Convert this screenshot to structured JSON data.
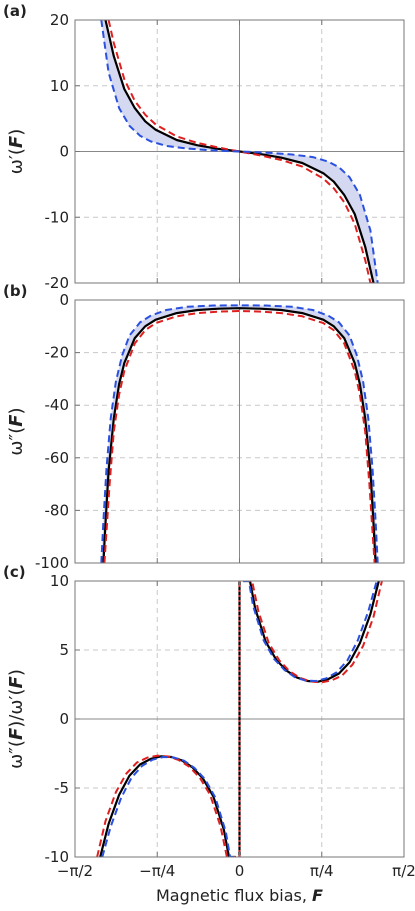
{
  "colors": {
    "black": "#000000",
    "red": "#e02020",
    "blue": "#2a50e0",
    "band": "#d4d8f0",
    "grid": "#c8c8c8",
    "frame": "#777777",
    "zero": "#888888"
  },
  "xaxis": {
    "label": "Magnetic flux bias, ",
    "label_symbol": "F",
    "range": [
      -1.5708,
      1.5708
    ],
    "tick_values": [
      -1.5708,
      -0.7854,
      0,
      0.7854,
      1.5708
    ],
    "tick_labels": [
      "−π/2",
      "−π/4",
      "0",
      "π/4",
      "π/2"
    ]
  },
  "chart_data": [
    {
      "type": "line",
      "panel_label": "(a)",
      "ylabel": "ω′(F)",
      "ylim": [
        -20,
        20
      ],
      "yticks": [
        20,
        10,
        0,
        -10,
        -20
      ],
      "ytick_labels": [
        "20",
        "10",
        "0",
        "-10",
        "-20"
      ],
      "xlim": [
        -1.5708,
        1.5708
      ],
      "grid": true,
      "series": [
        {
          "style": "solid",
          "color": "black",
          "x": [
            -1.28,
            -1.2,
            -1.1,
            -1.0,
            -0.9,
            -0.8,
            -0.6,
            -0.4,
            -0.2,
            0,
            0.2,
            0.4,
            0.6,
            0.8,
            0.9,
            1.0,
            1.1,
            1.2,
            1.28
          ],
          "y": [
            20,
            14.5,
            9.5,
            6.6,
            4.6,
            3.3,
            1.75,
            0.95,
            0.4,
            0,
            -0.4,
            -0.95,
            -1.75,
            -3.3,
            -4.6,
            -6.6,
            -9.5,
            -14.5,
            -20
          ]
        },
        {
          "style": "dashed",
          "color": "red",
          "x": [
            -1.25,
            -1.2,
            -1.1,
            -1.0,
            -0.9,
            -0.8,
            -0.6,
            -0.4,
            -0.2,
            0,
            0.2,
            0.4,
            0.6,
            0.8,
            0.9,
            1.0,
            1.1,
            1.2,
            1.25,
            1.3
          ],
          "y": [
            20,
            16.5,
            11,
            7.7,
            5.6,
            4.1,
            2.3,
            1.3,
            0.6,
            0,
            -0.6,
            -1.3,
            -2.3,
            -4.1,
            -5.6,
            -7.7,
            -11,
            -16.5,
            -20,
            -20
          ]
        },
        {
          "style": "dashed",
          "color": "blue",
          "x": [
            -1.32,
            -1.25,
            -1.15,
            -1.05,
            -0.95,
            -0.85,
            -0.7,
            -0.5,
            -0.3,
            -0.1,
            0,
            0.1,
            0.3,
            0.5,
            0.7,
            0.85,
            0.95,
            1.05,
            1.15,
            1.25,
            1.32
          ],
          "y": [
            20,
            12,
            6.6,
            3.9,
            2.4,
            1.55,
            0.85,
            0.45,
            0.22,
            0.06,
            0,
            -0.06,
            -0.22,
            -0.45,
            -0.85,
            -1.55,
            -2.4,
            -3.9,
            -6.6,
            -12,
            -20
          ]
        }
      ]
    },
    {
      "type": "line",
      "panel_label": "(b)",
      "ylabel": "ω″(F)",
      "ylim": [
        -100,
        0
      ],
      "yticks": [
        0,
        -20,
        -40,
        -60,
        -80,
        -100
      ],
      "ytick_labels": [
        "0",
        "-20",
        "-40",
        "-60",
        "-80",
        "-100"
      ],
      "xlim": [
        -1.5708,
        1.5708
      ],
      "grid": true,
      "series": [
        {
          "style": "solid",
          "color": "black",
          "x": [
            -1.3,
            -1.28,
            -1.25,
            -1.2,
            -1.15,
            -1.1,
            -1.0,
            -0.9,
            -0.8,
            -0.6,
            -0.4,
            -0.2,
            0,
            0.2,
            0.4,
            0.6,
            0.8,
            0.9,
            1.0,
            1.1,
            1.15,
            1.2,
            1.25,
            1.28,
            1.3
          ],
          "y": [
            -100,
            -85,
            -65,
            -45,
            -32,
            -24,
            -14.5,
            -10,
            -7.5,
            -5,
            -3.8,
            -3.3,
            -3.1,
            -3.3,
            -3.8,
            -5,
            -7.5,
            -10,
            -14.5,
            -24,
            -32,
            -45,
            -65,
            -85,
            -100
          ]
        },
        {
          "style": "dashed",
          "color": "red",
          "x": [
            -1.29,
            -1.27,
            -1.24,
            -1.2,
            -1.15,
            -1.1,
            -1.0,
            -0.9,
            -0.8,
            -0.6,
            -0.4,
            -0.2,
            0,
            0.2,
            0.4,
            0.6,
            0.8,
            0.9,
            1.0,
            1.1,
            1.15,
            1.2,
            1.24,
            1.27,
            1.29
          ],
          "y": [
            -100,
            -88,
            -70,
            -50,
            -36,
            -27,
            -16.5,
            -11.5,
            -8.8,
            -6.2,
            -5,
            -4.4,
            -4.2,
            -4.4,
            -5,
            -6.2,
            -8.8,
            -11.5,
            -16.5,
            -27,
            -36,
            -50,
            -70,
            -88,
            -100
          ]
        },
        {
          "style": "dashed",
          "color": "blue",
          "x": [
            -1.32,
            -1.3,
            -1.27,
            -1.23,
            -1.18,
            -1.12,
            -1.05,
            -0.95,
            -0.85,
            -0.7,
            -0.5,
            -0.25,
            0,
            0.25,
            0.5,
            0.7,
            0.85,
            0.95,
            1.05,
            1.12,
            1.18,
            1.23,
            1.27,
            1.3,
            1.32
          ],
          "y": [
            -100,
            -84,
            -64,
            -45,
            -31,
            -21,
            -13.5,
            -8.5,
            -6,
            -3.8,
            -2.6,
            -2.1,
            -2,
            -2.1,
            -2.6,
            -3.8,
            -6,
            -8.5,
            -13.5,
            -21,
            -31,
            -45,
            -64,
            -84,
            -100
          ]
        }
      ]
    },
    {
      "type": "line",
      "panel_label": "(c)",
      "ylabel": "ω″(F)/ω′(F)",
      "ylim": [
        -10,
        10
      ],
      "yticks": [
        10,
        5,
        0,
        -5,
        -10
      ],
      "ytick_labels": [
        "10",
        "5",
        "0",
        "-5",
        "-10"
      ],
      "xlim": [
        -1.5708,
        1.5708
      ],
      "grid": true,
      "series": [
        {
          "style": "solid",
          "color": "black",
          "x": [
            -1.33,
            -1.25,
            -1.15,
            -1.05,
            -0.95,
            -0.85,
            -0.75,
            -0.65,
            -0.55,
            -0.45,
            -0.35,
            -0.25,
            -0.15,
            -0.1,
            -0.06,
            -0.035
          ],
          "y": [
            -10,
            -7.6,
            -5.5,
            -4.1,
            -3.3,
            -2.9,
            -2.7,
            -2.75,
            -3,
            -3.5,
            -4.3,
            -5.6,
            -8,
            -10,
            -10,
            -10
          ]
        },
        {
          "style": "solid",
          "color": "black",
          "x": [
            0.035,
            0.06,
            0.1,
            0.15,
            0.25,
            0.35,
            0.45,
            0.55,
            0.65,
            0.75,
            0.85,
            0.95,
            1.05,
            1.15,
            1.25,
            1.33
          ],
          "y": [
            10,
            10,
            10,
            8,
            5.6,
            4.3,
            3.5,
            3,
            2.75,
            2.7,
            2.9,
            3.3,
            4.1,
            5.5,
            7.6,
            10
          ]
        },
        {
          "style": "dashed",
          "color": "red",
          "x": [
            -1.36,
            -1.28,
            -1.18,
            -1.08,
            -0.98,
            -0.88,
            -0.78,
            -0.68,
            -0.58,
            -0.48,
            -0.38,
            -0.28,
            -0.18,
            -0.12,
            -0.08,
            -0.04
          ],
          "y": [
            -10,
            -7.4,
            -5.3,
            -3.95,
            -3.15,
            -2.8,
            -2.65,
            -2.72,
            -2.98,
            -3.45,
            -4.25,
            -5.5,
            -7.8,
            -10,
            -10,
            -10
          ]
        },
        {
          "style": "dashed",
          "color": "red",
          "x": [
            0.04,
            0.08,
            0.12,
            0.18,
            0.28,
            0.38,
            0.48,
            0.58,
            0.68,
            0.78,
            0.88,
            0.98,
            1.08,
            1.18,
            1.28,
            1.36
          ],
          "y": [
            10,
            10,
            10,
            7.8,
            5.5,
            4.25,
            3.45,
            2.98,
            2.72,
            2.65,
            2.8,
            3.15,
            3.95,
            5.3,
            7.4,
            10
          ]
        },
        {
          "style": "dashed",
          "color": "blue",
          "x": [
            -1.31,
            -1.23,
            -1.13,
            -1.03,
            -0.93,
            -0.83,
            -0.73,
            -0.63,
            -0.53,
            -0.43,
            -0.33,
            -0.23,
            -0.13,
            -0.09,
            -0.06,
            -0.033
          ],
          "y": [
            -10,
            -7.8,
            -5.7,
            -4.25,
            -3.4,
            -2.95,
            -2.75,
            -2.78,
            -3.02,
            -3.55,
            -4.35,
            -5.7,
            -8.2,
            -10,
            -10,
            -10
          ]
        },
        {
          "style": "dashed",
          "color": "blue",
          "x": [
            0.033,
            0.06,
            0.09,
            0.13,
            0.23,
            0.33,
            0.43,
            0.53,
            0.63,
            0.73,
            0.83,
            0.93,
            1.03,
            1.13,
            1.23,
            1.31
          ],
          "y": [
            10,
            10,
            10,
            8.2,
            5.7,
            4.35,
            3.55,
            3.02,
            2.78,
            2.75,
            2.95,
            3.4,
            4.25,
            5.7,
            7.8,
            10
          ]
        },
        {
          "style": "solid",
          "color": "black",
          "x": [
            0,
            0
          ],
          "y": [
            -10,
            10
          ]
        },
        {
          "style": "dotted",
          "color": "red",
          "x": [
            0,
            0
          ],
          "y": [
            -10,
            10
          ]
        }
      ]
    }
  ]
}
